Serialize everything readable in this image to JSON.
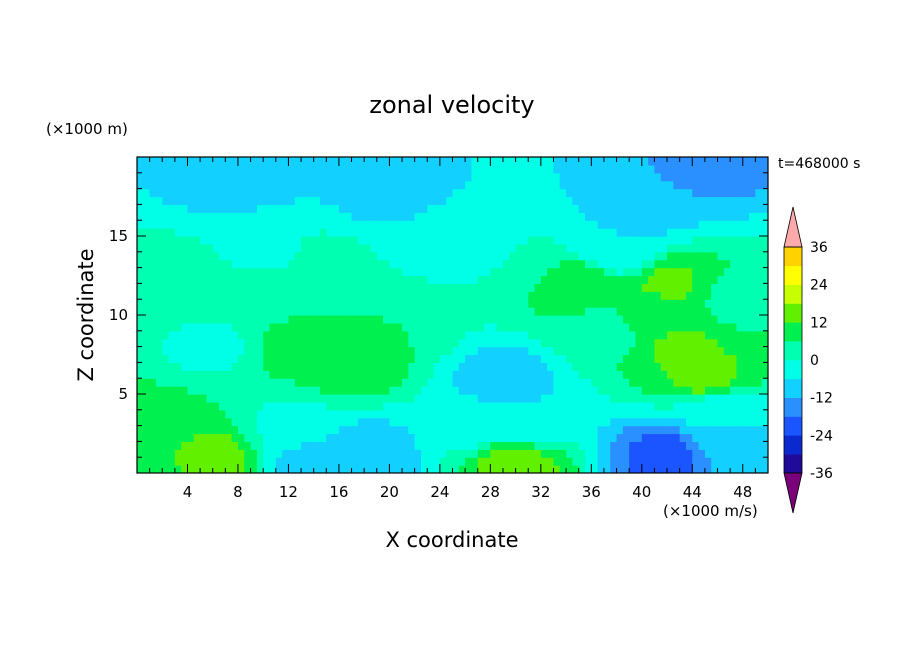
{
  "chart_data": {
    "type": "heatmap",
    "title": "zonal velocity",
    "xlabel": "X coordinate",
    "ylabel": "Z coordinate",
    "x_unit": "(×1000 m/s)",
    "y_unit": "(×1000 m)",
    "time_label": "t=468000 s",
    "xlim": [
      0,
      50
    ],
    "ylim": [
      0,
      20
    ],
    "x_ticks": [
      4,
      8,
      12,
      16,
      20,
      24,
      28,
      32,
      36,
      40,
      44,
      48
    ],
    "y_ticks": [
      5,
      10,
      15
    ],
    "colorbar": {
      "levels": [
        -36,
        -30,
        -24,
        -18,
        -12,
        -6,
        0,
        6,
        12,
        18,
        24,
        30,
        36
      ],
      "labels": [
        36,
        24,
        12,
        0,
        -12,
        -24,
        -36
      ],
      "extend": "both",
      "colors": [
        "#7a007a",
        "#1f0a9a",
        "#0a2ad0",
        "#1a55ff",
        "#2a90ff",
        "#12d0ff",
        "#00ffe6",
        "#00ffb0",
        "#00f050",
        "#60f000",
        "#c8ff00",
        "#ffff00",
        "#ffd200",
        "#ffa000",
        "#ff6a00",
        "#ff2a00",
        "#ffaaaa"
      ]
    },
    "series": [
      {
        "name": "",
        "values": [
          [
            0,
            0,
            6
          ],
          [
            6,
            1,
            15
          ],
          [
            14,
            0.8,
            -9
          ],
          [
            18,
            1.2,
            -10
          ],
          [
            30,
            0.8,
            16
          ],
          [
            42,
            1.2,
            -20
          ],
          [
            47,
            2,
            -8
          ],
          [
            46,
            4,
            -4
          ],
          [
            2,
            3.5,
            8
          ],
          [
            12,
            3,
            -1
          ],
          [
            6,
            8,
            -1
          ],
          [
            2,
            12,
            3
          ],
          [
            10,
            11.5,
            3
          ],
          [
            17,
            7,
            10
          ],
          [
            13,
            8,
            9
          ],
          [
            20,
            9,
            6
          ],
          [
            29,
            6,
            -9
          ],
          [
            31,
            3,
            -6
          ],
          [
            27,
            3,
            -3
          ],
          [
            37,
            9,
            3
          ],
          [
            43,
            8,
            13
          ],
          [
            45,
            6,
            14
          ],
          [
            40,
            10,
            7
          ],
          [
            35,
            12,
            12
          ],
          [
            42,
            12,
            13
          ],
          [
            48,
            11,
            4
          ],
          [
            10,
            14,
            -1
          ],
          [
            25,
            15,
            -4
          ],
          [
            38,
            14,
            -6
          ],
          [
            20,
            18,
            -9
          ],
          [
            40,
            17,
            -10
          ],
          [
            8,
            19,
            -10
          ],
          [
            45,
            19.5,
            -14
          ],
          [
            15,
            13.3,
            1
          ],
          [
            30,
            13.5,
            0
          ]
        ]
      }
    ]
  }
}
